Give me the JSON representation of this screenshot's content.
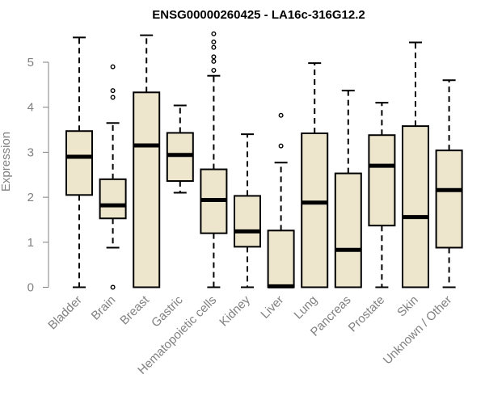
{
  "chart_data": {
    "type": "boxplot",
    "title": "ENSG00000260425 - LA16c-316G12.2",
    "xlabel": "",
    "ylabel": "Expression",
    "ylim": [
      0,
      5.6
    ],
    "yticks": [
      0,
      1,
      2,
      3,
      4,
      5
    ],
    "box_color": "#ede6cd",
    "categories": [
      "Bladder",
      "Brain",
      "Breast",
      "Gastric",
      "Hematopoietic cells",
      "Kidney",
      "Liver",
      "Lung",
      "Pancreas",
      "Prostate",
      "Skin",
      "Unknown / Other"
    ],
    "boxes": [
      {
        "min": 0.0,
        "q1": 2.05,
        "median": 2.9,
        "q3": 3.47,
        "max": 5.55,
        "outliers": []
      },
      {
        "min": 0.88,
        "q1": 1.53,
        "median": 1.82,
        "q3": 2.4,
        "max": 3.65,
        "outliers": [
          4.9,
          4.37,
          4.22,
          0.0
        ]
      },
      {
        "min": 0.0,
        "q1": 0.0,
        "median": 3.15,
        "q3": 4.33,
        "max": 5.6,
        "outliers": []
      },
      {
        "min": 2.1,
        "q1": 2.36,
        "median": 2.94,
        "q3": 3.43,
        "max": 4.04,
        "outliers": []
      },
      {
        "min": 0.0,
        "q1": 1.2,
        "median": 1.94,
        "q3": 2.62,
        "max": 4.7,
        "outliers": [
          5.63,
          5.45,
          5.33,
          5.12,
          5.02,
          4.82
        ]
      },
      {
        "min": 0.0,
        "q1": 0.9,
        "median": 1.24,
        "q3": 2.03,
        "max": 3.4,
        "outliers": []
      },
      {
        "min": 0.0,
        "q1": 0.0,
        "median": 0.02,
        "q3": 1.26,
        "max": 2.77,
        "outliers": [
          3.82,
          3.14
        ]
      },
      {
        "min": 0.0,
        "q1": 0.0,
        "median": 1.88,
        "q3": 3.42,
        "max": 4.98,
        "outliers": []
      },
      {
        "min": 0.0,
        "q1": 0.0,
        "median": 0.83,
        "q3": 2.53,
        "max": 4.37,
        "outliers": []
      },
      {
        "min": 0.0,
        "q1": 1.37,
        "median": 2.7,
        "q3": 3.38,
        "max": 4.1,
        "outliers": []
      },
      {
        "min": 0.0,
        "q1": 0.0,
        "median": 1.56,
        "q3": 3.58,
        "max": 5.44,
        "outliers": []
      },
      {
        "min": 0.0,
        "q1": 0.88,
        "median": 2.16,
        "q3": 3.04,
        "max": 4.6,
        "outliers": []
      }
    ]
  }
}
